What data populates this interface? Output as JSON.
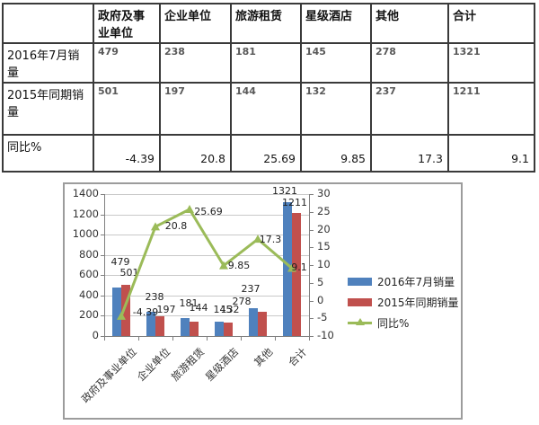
{
  "table": {
    "header": [
      "",
      "政府及事业单位",
      "企业单位",
      "旅游租赁",
      "星级酒店",
      "其他",
      "合计"
    ],
    "rows": [
      {
        "label": "2016年7月销量",
        "values": [
          "479",
          "238",
          "181",
          "145",
          "278",
          "1321"
        ]
      },
      {
        "label": "2015年同期销量",
        "values": [
          "501",
          "197",
          "144",
          "132",
          "237",
          "1211"
        ]
      },
      {
        "label": "同比%",
        "values": [
          "-4.39",
          "20.8",
          "25.69",
          "9.85",
          "17.3",
          "9.1"
        ]
      }
    ]
  },
  "chart_data": {
    "type": "bar",
    "subtype": "bar+line dual axis combo",
    "categories": [
      "政府及事业单位",
      "企业单位",
      "旅游租赁",
      "星级酒店",
      "其他",
      "合计"
    ],
    "series": [
      {
        "name": "2016年7月销量",
        "type": "bar",
        "axis": "primary",
        "color": "#4F81BD",
        "values": [
          479,
          238,
          181,
          145,
          278,
          1321
        ]
      },
      {
        "name": "2015年同期销量",
        "type": "bar",
        "axis": "primary",
        "color": "#C0504D",
        "values": [
          501,
          197,
          144,
          132,
          237,
          1211
        ]
      },
      {
        "name": "同比%",
        "type": "line",
        "axis": "secondary",
        "color": "#9BBB59",
        "marker": "triangle",
        "values": [
          -4.39,
          20.8,
          25.69,
          9.85,
          17.3,
          9.1
        ]
      }
    ],
    "primary_axis": {
      "min": 0,
      "max": 1400,
      "step": 200
    },
    "secondary_axis": {
      "min": -10,
      "max": 30,
      "step": 5
    },
    "grid": true,
    "data_labels": true,
    "legend_position": "right"
  },
  "colors": {
    "bar_2016": "#4F81BD",
    "bar_2015": "#C0504D",
    "line_yoy": "#9BBB59",
    "gridline": "#c9c9c9",
    "axis": "#808080",
    "table_border": "#3a3a3a",
    "chart_border": "#9c9c9c"
  }
}
